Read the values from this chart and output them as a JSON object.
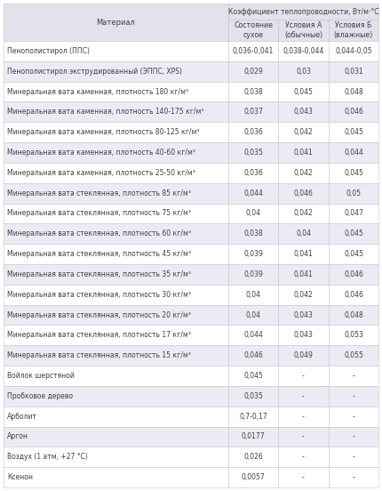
{
  "title_main": "Коэффициент теплопроводности, Вт/м·°С",
  "col_headers": [
    "Материал",
    "Состояние\nсухое",
    "Условия А\n(обычные)",
    "Условия Б\n(влажные)"
  ],
  "rows": [
    [
      "Пенополистирол (ППС)",
      "0,036-0,041",
      "0,038-0,044",
      "0,044-0,05"
    ],
    [
      "Пенополистирол экструдированный (ЭППС, XPS)",
      "0,029",
      "0,03",
      "0,031"
    ],
    [
      "Минеральная вата каменная, плотность 180 кг/м³",
      "0,038",
      "0,045",
      "0,048"
    ],
    [
      "Минеральная вата каменная, плотность 140-175 кг/м³",
      "0,037",
      "0,043",
      "0,046"
    ],
    [
      "Минеральная вата каменная, плотность 80-125 кг/м³",
      "0,036",
      "0,042",
      "0,045"
    ],
    [
      "Минеральная вата каменная, плотность 40-60 кг/м³",
      "0,035",
      "0,041",
      "0,044"
    ],
    [
      "Минеральная вата каменная, плотность 25-50 кг/м³",
      "0,036",
      "0,042",
      "0,045"
    ],
    [
      "Минеральная вата стеклянная, плотность 85 кг/м³",
      "0,044",
      "0,046",
      "0,05"
    ],
    [
      "Минеральная вата стеклянная, плотность 75 кг/м³",
      "0,04",
      "0,042",
      "0,047"
    ],
    [
      "Минеральная вата стеклянная, плотность 60 кг/м³",
      "0,038",
      "0,04",
      "0,045"
    ],
    [
      "Минеральная вата стеклянная, плотность 45 кг/м³",
      "0,039",
      "0,041",
      "0,045"
    ],
    [
      "Минеральная вата стеклянная, плотность 35 кг/м³",
      "0,039",
      "0,041",
      "0,046"
    ],
    [
      "Минеральная вата стеклянная, плотность 30 кг/м³",
      "0,04",
      "0,042",
      "0,046"
    ],
    [
      "Минеральная вата стеклянная, плотность 20 кг/м³",
      "0,04",
      "0,043",
      "0,048"
    ],
    [
      "Минеральная вата стеклянная, плотность 17 кг/м³",
      "0,044",
      "0,043",
      "0,053"
    ],
    [
      "Минеральная вата стеклянная, плотность 15 кг/м³",
      "0,046",
      "0,049",
      "0,055"
    ],
    [
      "Войлок шерстяной",
      "0,045",
      "-",
      "-"
    ],
    [
      "Пробковое дерево",
      "0,035",
      "-",
      "-"
    ],
    [
      "Арболит",
      "0,7-0,17",
      "-",
      "-"
    ],
    [
      "Аргон",
      "0,0177",
      "-",
      "-"
    ],
    [
      "Воздух (1 атм, +27 °С)",
      "0,026",
      "-",
      "-"
    ],
    [
      "Ксенон",
      "0,0057",
      "-",
      "-"
    ]
  ],
  "shaded_rows": [
    1,
    3,
    5,
    7,
    9,
    11,
    13,
    15,
    17,
    19
  ],
  "bg_color": "#ffffff",
  "header_bg": "#e2e2ec",
  "shaded_bg": "#ebebf5",
  "border_color": "#c8c8c8",
  "text_color": "#404040",
  "header_text_color": "#404040",
  "font_size": 5.5,
  "header_font_size": 6.0,
  "fig_width": 4.3,
  "fig_height": 5.52,
  "dpi": 100
}
